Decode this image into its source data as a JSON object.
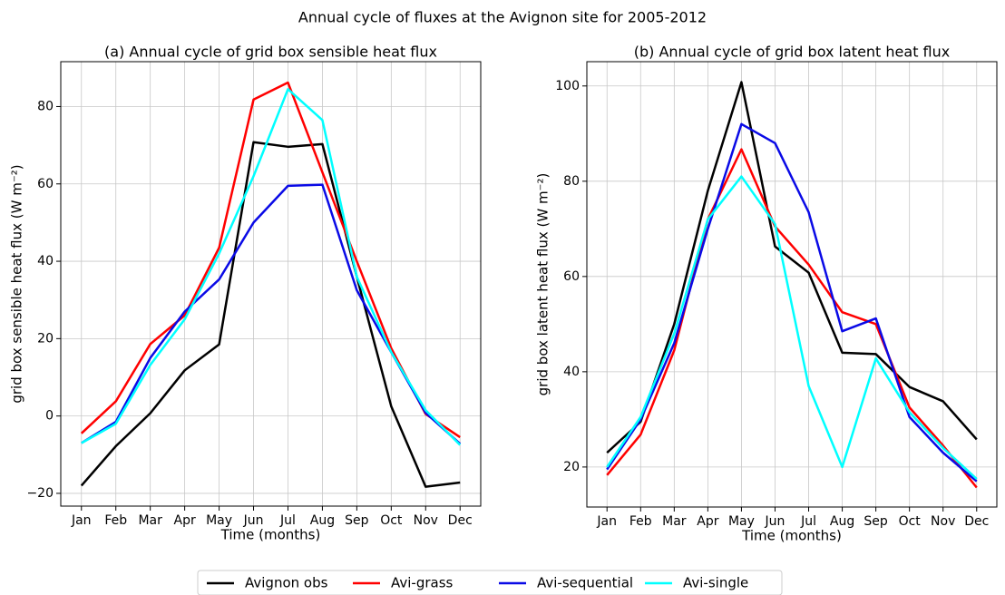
{
  "title": "Annual cycle of fluxes at the Avignon site for 2005-2012",
  "legend": "bottom",
  "chart_data": [
    {
      "type": "line",
      "title": "(a) Annual cycle of grid box sensible heat flux",
      "x_label": "Time (months)",
      "y_label": "grid box sensible heat flux (W m⁻²)",
      "categories": [
        "Jan",
        "Feb",
        "Mar",
        "Apr",
        "May",
        "Jun",
        "Jul",
        "Aug",
        "Sep",
        "Oct",
        "Nov",
        "Dec"
      ],
      "ylim": [
        -23.3,
        91.6
      ],
      "yticks": [
        {
          "value": -20,
          "label": "−20"
        },
        0,
        20,
        40,
        60,
        80
      ],
      "grid": true,
      "series": [
        {
          "name": "Avignon obs",
          "color": "#000000",
          "values": [
            -18,
            -7.8,
            0.7,
            11.8,
            18.5,
            70.8,
            69.6,
            70.3,
            36,
            2.5,
            -18.3,
            -17.2
          ]
        },
        {
          "name": "Avi-grass",
          "color": "#ff0000",
          "values": [
            -4.5,
            3.8,
            18.6,
            26,
            43.5,
            81.8,
            86.2,
            63,
            40,
            17.5,
            0.5,
            -5.5
          ]
        },
        {
          "name": "Avi-sequential",
          "color": "#0a0ae6",
          "values": [
            -7,
            -1.5,
            15,
            27,
            35.3,
            50,
            59.5,
            59.8,
            32.5,
            16.5,
            0.8,
            -7.2
          ]
        },
        {
          "name": "Avi-single",
          "color": "#00ffff",
          "values": [
            -7,
            -2,
            13.2,
            25,
            42,
            62,
            84.5,
            76.5,
            36,
            16.5,
            1.5,
            -7.5
          ]
        }
      ]
    },
    {
      "type": "line",
      "title": "(b) Annual cycle of grid box latent heat flux",
      "x_label": "Time (months)",
      "y_label": "grid box latent heat flux (W m⁻²)",
      "categories": [
        "Jan",
        "Feb",
        "Mar",
        "Apr",
        "May",
        "Jun",
        "Jul",
        "Aug",
        "Sep",
        "Oct",
        "Nov",
        "Dec"
      ],
      "ylim": [
        11.6,
        105.1
      ],
      "yticks": [
        20,
        40,
        60,
        80,
        100
      ],
      "grid": true,
      "series": [
        {
          "name": "Avignon obs",
          "color": "#000000",
          "values": [
            23,
            29.5,
            50,
            78,
            100.8,
            66.3,
            60.8,
            44,
            43.7,
            36.8,
            33.8,
            25.8
          ]
        },
        {
          "name": "Avi-grass",
          "color": "#ff0000",
          "values": [
            18.3,
            26.8,
            44.5,
            72,
            86.7,
            70.5,
            62.5,
            52.5,
            50,
            32.5,
            24.5,
            15.7
          ]
        },
        {
          "name": "Avi-sequential",
          "color": "#0a0ae6",
          "values": [
            19.5,
            30,
            46,
            70,
            92,
            88,
            73.5,
            48.5,
            51.2,
            30.5,
            23,
            17
          ]
        },
        {
          "name": "Avi-single",
          "color": "#00ffff",
          "values": [
            20,
            30.5,
            48,
            72,
            81,
            71,
            37,
            20,
            42.8,
            31.5,
            24,
            17.5
          ]
        }
      ]
    }
  ]
}
